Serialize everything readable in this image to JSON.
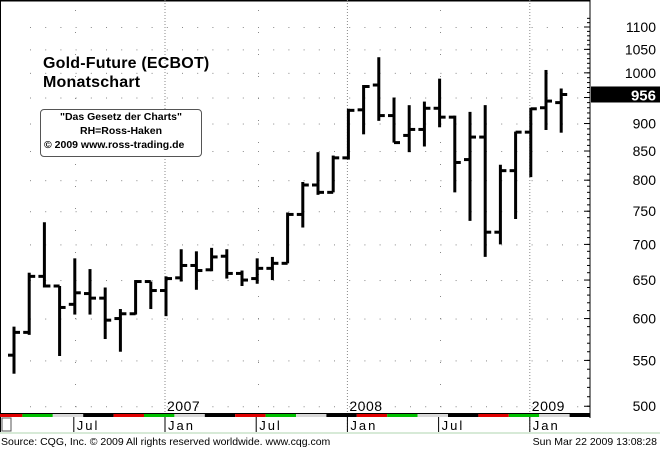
{
  "title": "Gold-Future (ECBOT)",
  "subtitle": "Monatschart",
  "note": {
    "line1": "\"Das Gesetz der Charts\"",
    "line2": "RH=Ross-Haken",
    "line3": "© 2009  www.ross-trading.de"
  },
  "footer": {
    "source": "Source: CQG, Inc. © 2009 All rights reserved worldwide. www.cqg.com",
    "timestamp": "Sun Mar 22 2009 13:08:28"
  },
  "chart_data": {
    "type": "ohlc",
    "scale": "log",
    "ylim": [
      495,
      1130
    ],
    "yticks": [
      500,
      550,
      600,
      650,
      700,
      750,
      800,
      850,
      900,
      950,
      1000,
      1050,
      1100
    ],
    "ytick_labels": [
      "500",
      "550",
      "600",
      "650",
      "700",
      "750",
      "800",
      "850",
      "900",
      "",
      "1000",
      "1050",
      "1100"
    ],
    "last_price": 956,
    "last_price_label": "956",
    "x_labels": [
      {
        "month": "2006-07",
        "label": "Jul"
      },
      {
        "month": "2007-01",
        "label": "Jan",
        "year": "2007"
      },
      {
        "month": "2007-07",
        "label": "Jul"
      },
      {
        "month": "2008-01",
        "label": "Jan",
        "year": "2008"
      },
      {
        "month": "2008-07",
        "label": "Jul"
      },
      {
        "month": "2009-01",
        "label": "Jan",
        "year": "2009"
      }
    ],
    "bars": [
      {
        "month": "2006-03",
        "o": 556,
        "h": 590,
        "l": 535,
        "c": 583
      },
      {
        "month": "2006-04",
        "o": 583,
        "h": 660,
        "l": 580,
        "c": 655
      },
      {
        "month": "2006-05",
        "o": 655,
        "h": 733,
        "l": 640,
        "c": 642
      },
      {
        "month": "2006-06",
        "o": 642,
        "h": 642,
        "l": 555,
        "c": 614
      },
      {
        "month": "2006-07",
        "o": 618,
        "h": 680,
        "l": 605,
        "c": 633
      },
      {
        "month": "2006-08",
        "o": 632,
        "h": 665,
        "l": 605,
        "c": 626
      },
      {
        "month": "2006-09",
        "o": 626,
        "h": 640,
        "l": 575,
        "c": 598
      },
      {
        "month": "2006-10",
        "o": 600,
        "h": 612,
        "l": 560,
        "c": 606
      },
      {
        "month": "2006-11",
        "o": 606,
        "h": 650,
        "l": 605,
        "c": 648
      },
      {
        "month": "2006-12",
        "o": 648,
        "h": 648,
        "l": 612,
        "c": 636
      },
      {
        "month": "2007-01",
        "o": 636,
        "h": 655,
        "l": 603,
        "c": 652
      },
      {
        "month": "2007-02",
        "o": 653,
        "h": 693,
        "l": 648,
        "c": 670
      },
      {
        "month": "2007-03",
        "o": 670,
        "h": 690,
        "l": 637,
        "c": 663
      },
      {
        "month": "2007-04",
        "o": 664,
        "h": 695,
        "l": 662,
        "c": 682
      },
      {
        "month": "2007-05",
        "o": 683,
        "h": 693,
        "l": 652,
        "c": 659
      },
      {
        "month": "2007-06",
        "o": 659,
        "h": 663,
        "l": 642,
        "c": 650
      },
      {
        "month": "2007-07",
        "o": 652,
        "h": 680,
        "l": 645,
        "c": 666
      },
      {
        "month": "2007-08",
        "o": 666,
        "h": 682,
        "l": 650,
        "c": 673
      },
      {
        "month": "2007-09",
        "o": 673,
        "h": 748,
        "l": 673,
        "c": 745
      },
      {
        "month": "2007-10",
        "o": 745,
        "h": 797,
        "l": 725,
        "c": 792
      },
      {
        "month": "2007-11",
        "o": 792,
        "h": 848,
        "l": 776,
        "c": 780
      },
      {
        "month": "2007-12",
        "o": 780,
        "h": 842,
        "l": 780,
        "c": 838
      },
      {
        "month": "2008-01",
        "o": 838,
        "h": 928,
        "l": 835,
        "c": 925
      },
      {
        "month": "2008-02",
        "o": 926,
        "h": 975,
        "l": 880,
        "c": 972
      },
      {
        "month": "2008-03",
        "o": 975,
        "h": 1033,
        "l": 905,
        "c": 915
      },
      {
        "month": "2008-04",
        "o": 915,
        "h": 950,
        "l": 865,
        "c": 865
      },
      {
        "month": "2008-05",
        "o": 878,
        "h": 935,
        "l": 848,
        "c": 889
      },
      {
        "month": "2008-06",
        "o": 889,
        "h": 942,
        "l": 858,
        "c": 929
      },
      {
        "month": "2008-07",
        "o": 929,
        "h": 988,
        "l": 893,
        "c": 912
      },
      {
        "month": "2008-08",
        "o": 912,
        "h": 915,
        "l": 780,
        "c": 830
      },
      {
        "month": "2008-09",
        "o": 835,
        "h": 922,
        "l": 735,
        "c": 875
      },
      {
        "month": "2008-10",
        "o": 875,
        "h": 935,
        "l": 682,
        "c": 718
      },
      {
        "month": "2008-11",
        "o": 718,
        "h": 826,
        "l": 700,
        "c": 816
      },
      {
        "month": "2008-12",
        "o": 816,
        "h": 885,
        "l": 738,
        "c": 884
      },
      {
        "month": "2009-01",
        "o": 884,
        "h": 930,
        "l": 805,
        "c": 928
      },
      {
        "month": "2009-02",
        "o": 930,
        "h": 1006,
        "l": 888,
        "c": 943
      },
      {
        "month": "2009-03",
        "o": 940,
        "h": 968,
        "l": 883,
        "c": 956
      }
    ],
    "colors": {
      "bars": "#000000",
      "grid": "#888888",
      "strip": [
        "#e00000",
        "#00c000",
        "#d8d8d8",
        "#000000"
      ],
      "last_price_bg": "#000000",
      "last_price_text": "#ffffff"
    }
  }
}
